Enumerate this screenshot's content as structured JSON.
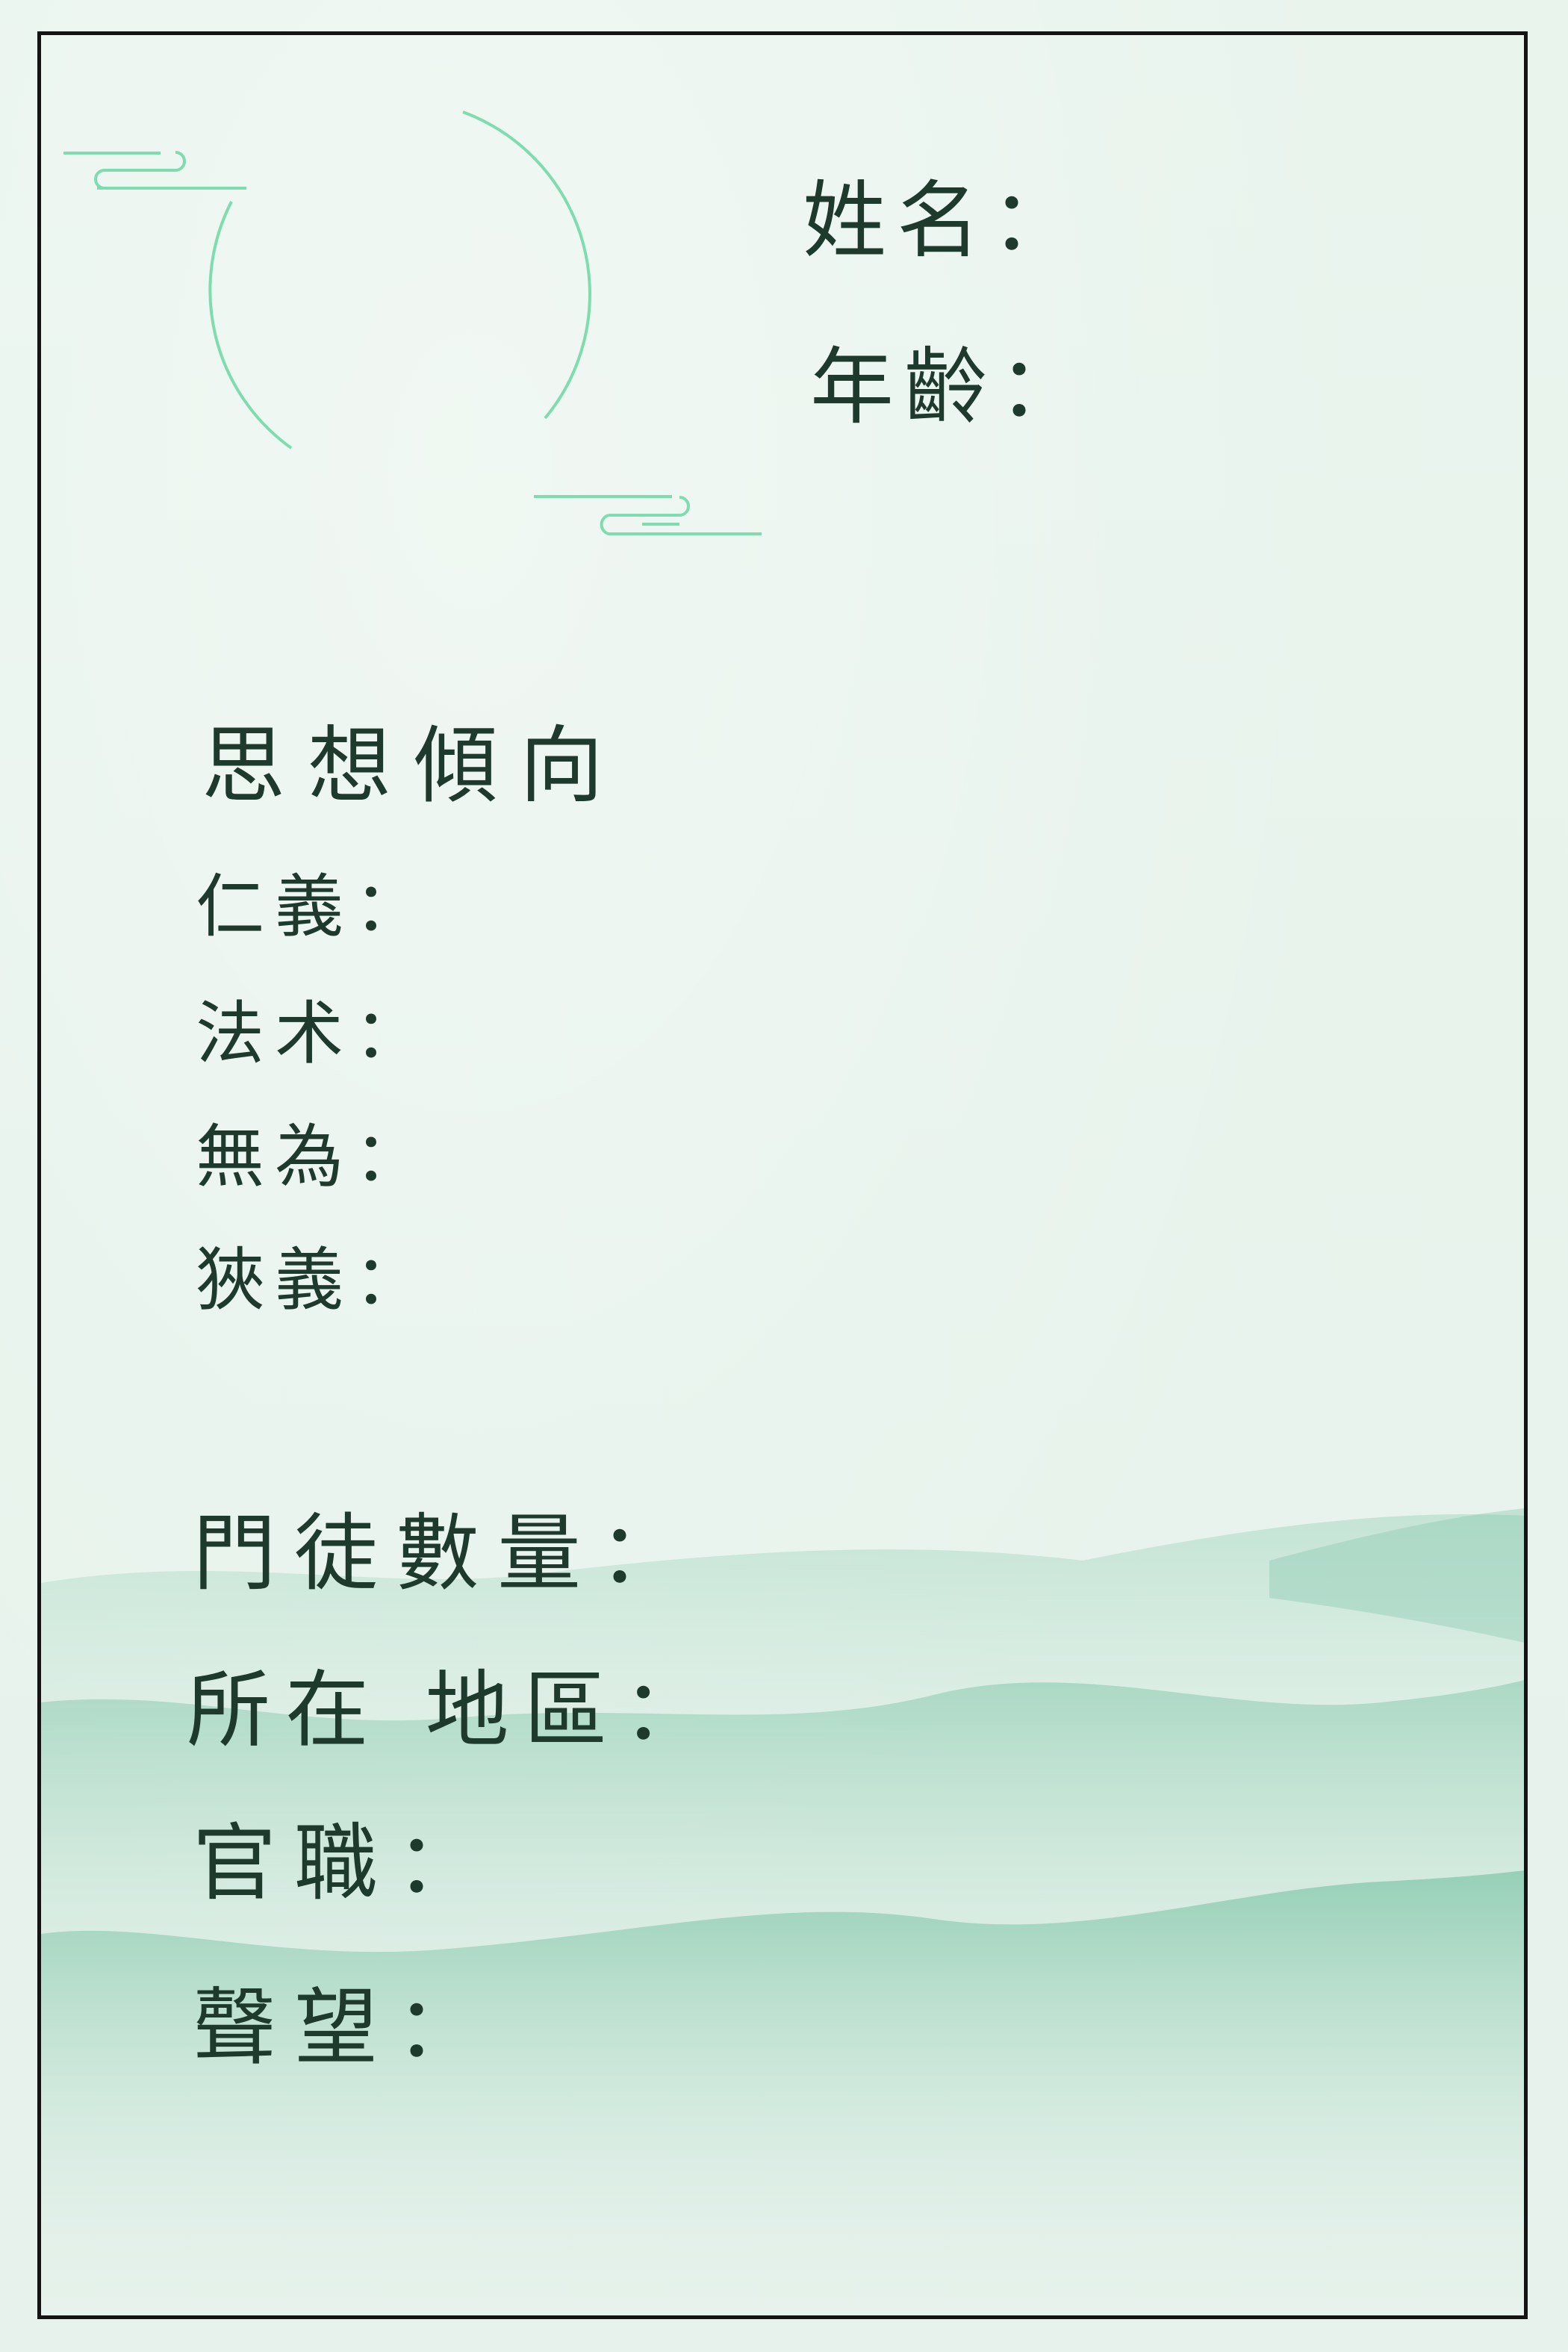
{
  "header": {
    "name_label": "姓名：",
    "age_label": "年齡："
  },
  "ideology": {
    "title": "思想傾向",
    "items": [
      {
        "label": "仁義："
      },
      {
        "label": "法术："
      },
      {
        "label": "無為："
      },
      {
        "label": "狹義："
      }
    ]
  },
  "details": {
    "items": [
      {
        "label": "門徒數量："
      },
      {
        "label": "所在 地區："
      },
      {
        "label": "官職："
      },
      {
        "label": "聲望："
      }
    ]
  },
  "colors": {
    "background": "#e8f3ec",
    "ink": "#1d3a2c",
    "frame": "#141414",
    "accent_line": "#7fdcb0",
    "mountain": "#9fd3bd"
  }
}
